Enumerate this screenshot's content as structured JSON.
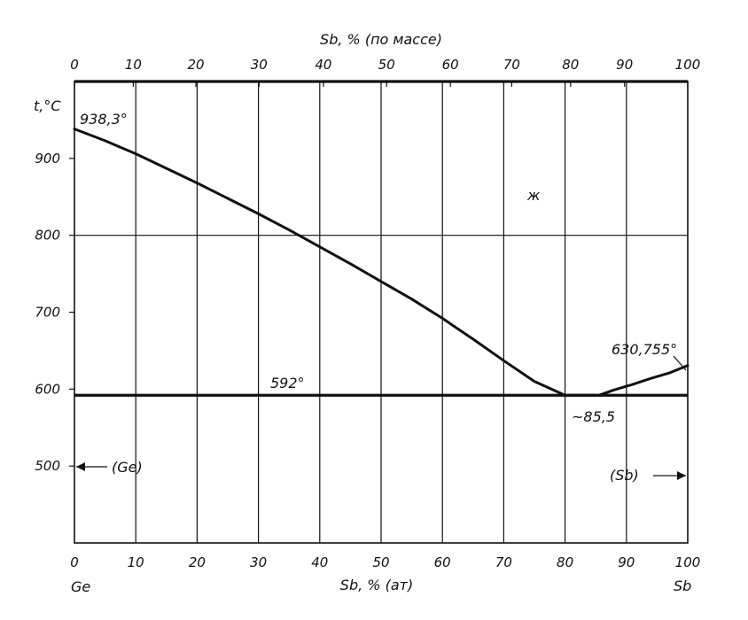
{
  "chart_data": {
    "type": "line",
    "title": "",
    "top_axis": {
      "label": "Sb, % (по массе)",
      "ticks": [
        "0",
        "10",
        "20",
        "30",
        "40",
        "50",
        "60",
        "70",
        "80",
        "90",
        "100"
      ],
      "positions_at_percent": [
        0,
        9.6,
        19.8,
        30.1,
        40.6,
        50.9,
        61.3,
        71.3,
        80.9,
        89.7,
        100
      ]
    },
    "bottom_axis": {
      "label": "Sb, % (ат)",
      "ticks": [
        "0",
        "10",
        "20",
        "30",
        "40",
        "50",
        "60",
        "70",
        "80",
        "90",
        "100"
      ],
      "xlim": [
        0,
        100
      ],
      "left_element": "Ge",
      "right_element": "Sb"
    },
    "y_axis": {
      "label": "t,°C",
      "ticks": [
        "500",
        "600",
        "700",
        "800",
        "900"
      ],
      "tick_values": [
        500,
        600,
        700,
        800,
        900
      ],
      "ylim": [
        400,
        1000
      ]
    },
    "horizontal_gridlines": [
      800
    ],
    "series": [
      {
        "x": [
          0,
          5,
          10,
          15,
          20,
          25,
          30,
          35,
          40,
          45,
          50,
          55,
          60,
          65,
          70,
          75,
          80,
          85
        ],
        "y": [
          938.3,
          923,
          906,
          887,
          868,
          848,
          828,
          807,
          785,
          763,
          740,
          717,
          692,
          665,
          637,
          610,
          592,
          592
        ]
      },
      {
        "x": [
          85.5,
          88,
          91,
          94,
          97,
          100
        ],
        "y": [
          592,
          599,
          606,
          614,
          621,
          630.755
        ]
      }
    ],
    "eutectic_line": {
      "y": 592,
      "x_range": [
        0,
        100
      ]
    },
    "annotations": {
      "ge_melt": "938,3°",
      "eutectic_temp": "592°",
      "eutectic_comp": "~85,5",
      "sb_melt": "630,755°",
      "liquid_region": "ж",
      "ge_phase": "(Ge)",
      "sb_phase": "(Sb)"
    }
  }
}
